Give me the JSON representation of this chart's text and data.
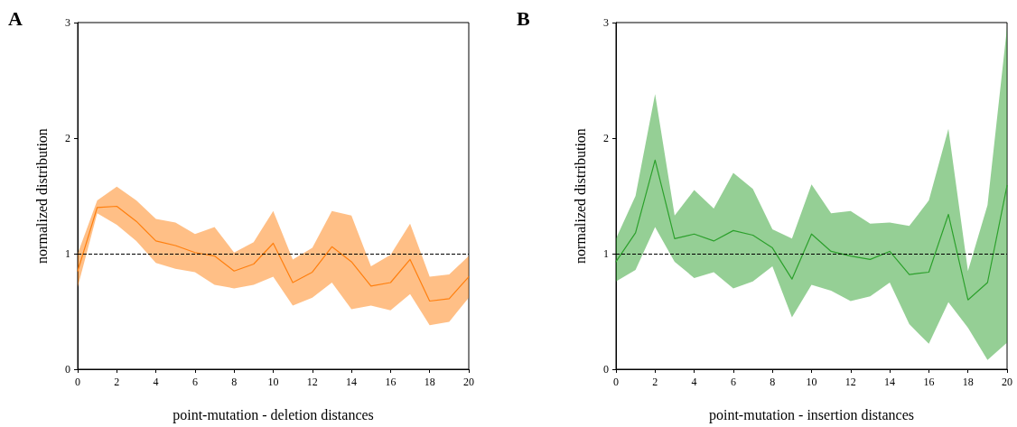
{
  "chart_data": [
    {
      "type": "line",
      "title": "A",
      "xlabel": "point-mutation - deletion distances",
      "ylabel": "normalized distribution",
      "x": [
        0,
        1,
        2,
        3,
        4,
        5,
        6,
        7,
        8,
        9,
        10,
        11,
        12,
        13,
        14,
        15,
        16,
        17,
        18,
        19,
        20
      ],
      "series": [
        {
          "color": "#ff7f0e",
          "values": [
            0.85,
            1.4,
            1.41,
            1.28,
            1.11,
            1.07,
            1.01,
            0.98,
            0.85,
            0.91,
            1.09,
            0.75,
            0.84,
            1.06,
            0.93,
            0.72,
            0.75,
            0.95,
            0.59,
            0.61,
            0.8
          ],
          "upper": [
            1.0,
            1.46,
            1.58,
            1.46,
            1.3,
            1.27,
            1.17,
            1.23,
            1.01,
            1.1,
            1.37,
            0.95,
            1.05,
            1.37,
            1.33,
            0.89,
            0.99,
            1.26,
            0.8,
            0.82,
            0.98
          ],
          "lower": [
            0.71,
            1.35,
            1.25,
            1.11,
            0.92,
            0.87,
            0.84,
            0.73,
            0.7,
            0.73,
            0.8,
            0.55,
            0.62,
            0.75,
            0.52,
            0.55,
            0.51,
            0.65,
            0.38,
            0.41,
            0.62
          ]
        }
      ],
      "xlim": [
        0,
        20
      ],
      "xticks": [
        0,
        2,
        4,
        6,
        8,
        10,
        12,
        14,
        16,
        18,
        20
      ],
      "ylim": [
        0,
        3
      ],
      "yticks": [
        0,
        1,
        2,
        3
      ],
      "ref_lines": [
        {
          "axis": "y",
          "value": 1,
          "color": "#000000",
          "line_style": "dashed"
        }
      ],
      "grid": false,
      "marker": "none",
      "line_style": "solid"
    },
    {
      "type": "line",
      "title": "B",
      "xlabel": "point-mutation - insertion distances",
      "ylabel": "normalized distribution",
      "x": [
        0,
        1,
        2,
        3,
        4,
        5,
        6,
        7,
        8,
        9,
        10,
        11,
        12,
        13,
        14,
        15,
        16,
        17,
        18,
        19,
        20
      ],
      "series": [
        {
          "color": "#2ca02c",
          "values": [
            0.93,
            1.18,
            1.81,
            1.13,
            1.17,
            1.11,
            1.2,
            1.16,
            1.05,
            0.78,
            1.17,
            1.02,
            0.98,
            0.95,
            1.02,
            0.82,
            0.84,
            1.34,
            0.6,
            0.75,
            1.59
          ],
          "upper": [
            1.13,
            1.5,
            2.38,
            1.33,
            1.55,
            1.39,
            1.7,
            1.56,
            1.21,
            1.13,
            1.6,
            1.35,
            1.37,
            1.26,
            1.27,
            1.24,
            1.46,
            2.08,
            0.85,
            1.42,
            2.96
          ],
          "lower": [
            0.76,
            0.86,
            1.23,
            0.93,
            0.79,
            0.84,
            0.7,
            0.76,
            0.89,
            0.45,
            0.73,
            0.68,
            0.59,
            0.63,
            0.75,
            0.39,
            0.22,
            0.58,
            0.36,
            0.08,
            0.23
          ]
        }
      ],
      "xlim": [
        0,
        20
      ],
      "xticks": [
        0,
        2,
        4,
        6,
        8,
        10,
        12,
        14,
        16,
        18,
        20
      ],
      "ylim": [
        0,
        3
      ],
      "yticks": [
        0,
        1,
        2,
        3
      ],
      "ref_lines": [
        {
          "axis": "y",
          "value": 1,
          "color": "#000000",
          "line_style": "dashed"
        }
      ],
      "grid": false,
      "marker": "none",
      "line_style": "solid"
    }
  ]
}
